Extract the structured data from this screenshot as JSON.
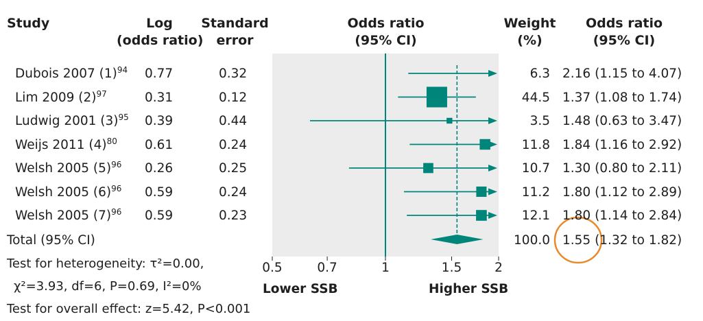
{
  "headers": {
    "study": "Study",
    "log_or": [
      "Log",
      "(odds ratio)"
    ],
    "se": [
      "Standard",
      "error"
    ],
    "or_plot": [
      "Odds ratio",
      "(95% CI)"
    ],
    "weight": [
      "Weight",
      "(%)"
    ],
    "or_text": [
      "Odds ratio",
      "(95% CI)"
    ]
  },
  "rows": [
    {
      "study": "Dubois 2007 (1)",
      "ref": "94",
      "log_or": "0.77",
      "se": "0.32",
      "weight": "6.3",
      "or_ci": "2.16 (1.15 to 4.07)"
    },
    {
      "study": "Lim 2009 (2)",
      "ref": "97",
      "log_or": "0.31",
      "se": "0.12",
      "weight": "44.5",
      "or_ci": "1.37 (1.08 to 1.74)"
    },
    {
      "study": "Ludwig 2001 (3)",
      "ref": "95",
      "log_or": "0.39",
      "se": "0.44",
      "weight": "3.5",
      "or_ci": "1.48 (0.63 to 3.47)"
    },
    {
      "study": "Weijs 2011 (4)",
      "ref": "80",
      "log_or": "0.61",
      "se": "0.24",
      "weight": "11.8",
      "or_ci": "1.84 (1.16 to 2.92)"
    },
    {
      "study": "Welsh 2005 (5)",
      "ref": "96",
      "log_or": "0.26",
      "se": "0.25",
      "weight": "10.7",
      "or_ci": "1.30 (0.80 to 2.11)"
    },
    {
      "study": "Welsh 2005 (6)",
      "ref": "96",
      "log_or": "0.59",
      "se": "0.24",
      "weight": "11.2",
      "or_ci": "1.80 (1.12 to 2.89)"
    },
    {
      "study": "Welsh 2005 (7)",
      "ref": "96",
      "log_or": "0.59",
      "se": "0.23",
      "weight": "12.1",
      "or_ci": "1.80 (1.14 to 2.84)"
    }
  ],
  "total": {
    "label": "Total (95% CI)",
    "weight": "100.0",
    "or_ci": "1.55 (1.32 to 1.82)"
  },
  "footnotes": {
    "heterogeneity_1": "Test for heterogeneity: τ²=0.00,",
    "heterogeneity_2": "χ²=3.93, df=6, P=0.69, I²=0%",
    "overall": "Test for overall effect: z=5.42, P<0.001"
  },
  "axis": {
    "ticks": [
      "0.5",
      "0.7",
      "1",
      "1.5",
      "2"
    ],
    "left_label": "Lower SSB",
    "right_label": "Higher SSB"
  },
  "colors": {
    "marker": "#00857a",
    "panel": "#ececec",
    "highlight_circle": "#e8892b",
    "text": "#1e1e1e"
  },
  "chart_data": {
    "type": "forest",
    "scale": "log",
    "xlim": [
      0.5,
      2
    ],
    "null_value": 1,
    "studies": [
      {
        "name": "Dubois 2007 (1)",
        "or": 2.16,
        "lower": 1.15,
        "upper": 4.07,
        "weight": 6.3
      },
      {
        "name": "Lim 2009 (2)",
        "or": 1.37,
        "lower": 1.08,
        "upper": 1.74,
        "weight": 44.5
      },
      {
        "name": "Ludwig 2001 (3)",
        "or": 1.48,
        "lower": 0.63,
        "upper": 3.47,
        "weight": 3.5
      },
      {
        "name": "Weijs 2011 (4)",
        "or": 1.84,
        "lower": 1.16,
        "upper": 2.92,
        "weight": 11.8
      },
      {
        "name": "Welsh 2005 (5)",
        "or": 1.3,
        "lower": 0.8,
        "upper": 2.11,
        "weight": 10.7
      },
      {
        "name": "Welsh 2005 (6)",
        "or": 1.8,
        "lower": 1.12,
        "upper": 2.89,
        "weight": 11.2
      },
      {
        "name": "Welsh 2005 (7)",
        "or": 1.8,
        "lower": 1.14,
        "upper": 2.84,
        "weight": 12.1
      }
    ],
    "pooled": {
      "or": 1.55,
      "lower": 1.32,
      "upper": 1.82
    }
  }
}
